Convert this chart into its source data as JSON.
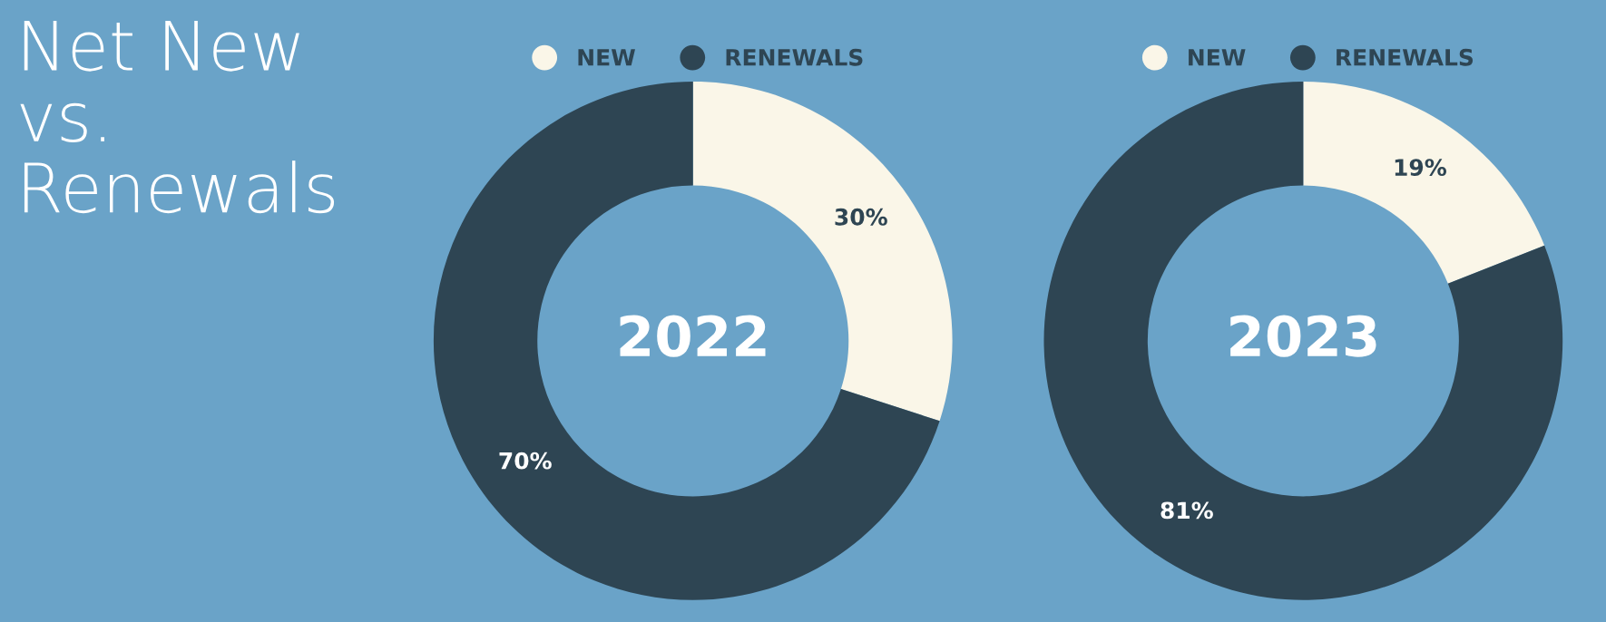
{
  "chart_data": [
    {
      "type": "donut",
      "title": "2022",
      "annotations": [
        "Net New\nvs.\nRenewals"
      ],
      "categories": [
        "NEW",
        "RENEWALS"
      ],
      "values": [
        30,
        70
      ],
      "value_labels": [
        "30%",
        "70%"
      ],
      "colors": [
        "#faf6e8",
        "#2e4553"
      ],
      "legend": "top"
    },
    {
      "type": "donut",
      "title": "2023",
      "categories": [
        "NEW",
        "RENEWALS"
      ],
      "values": [
        19,
        81
      ],
      "value_labels": [
        "19%",
        "81%"
      ],
      "colors": [
        "#faf6e8",
        "#2e4553"
      ],
      "legend": "top"
    }
  ]
}
